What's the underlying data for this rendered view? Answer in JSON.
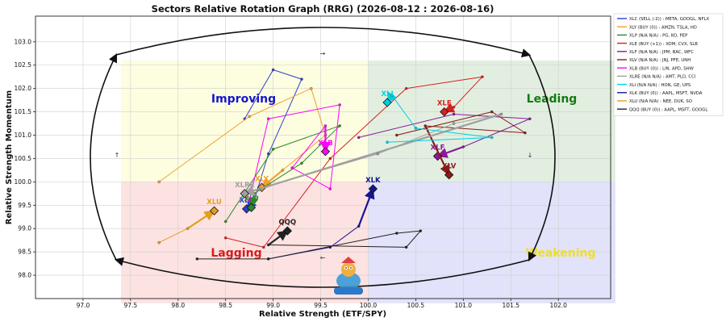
{
  "chart_data": {
    "type": "scatter",
    "title": "Sectors Relative Rotation Graph (RRG) (2026-08-12 : 2026-08-16)",
    "xlabel": "Relative Strength (ETF/SPY)",
    "ylabel": "Relative Strength Momentum",
    "xlim": [
      96.5,
      102.55
    ],
    "ylim": [
      97.5,
      103.55
    ],
    "grid": true,
    "legend_position": "top-right",
    "xticks": [
      "97.0",
      "97.5",
      "98.0",
      "98.5",
      "99.0",
      "99.5",
      "100.0",
      "100.5",
      "101.0",
      "101.5",
      "102.0"
    ],
    "yticks": [
      "98.0",
      "98.5",
      "99.0",
      "99.5",
      "100.0",
      "100.5",
      "101.0",
      "101.5",
      "102.0",
      "102.5",
      "103.0"
    ],
    "quadrants": [
      {
        "name": "Improving",
        "color": "#fdfde0",
        "label_color": "#1515cc",
        "x": [
          97.4,
          100.0
        ],
        "y": [
          100.0,
          102.6
        ]
      },
      {
        "name": "Leading",
        "color": "#e2efe0",
        "label_color": "#137a13",
        "x": [
          100.0,
          102.6
        ],
        "y": [
          100.0,
          102.6
        ]
      },
      {
        "name": "Lagging",
        "color": "#fde2e2",
        "label_color": "#e01818",
        "x": [
          97.4,
          100.0
        ],
        "y": [
          97.4,
          100.0
        ]
      },
      {
        "name": "Weakening",
        "color": "#e2e2fa",
        "label_color": "#f0e020",
        "x": [
          100.0,
          102.6
        ],
        "y": [
          97.4,
          100.0
        ]
      }
    ],
    "series": [
      {
        "name": "XLC",
        "legend": "XLC (SELL (-2)) : META, GOOGL, NFLX",
        "color": "#2f3fd0",
        "points": [
          [
            98.7,
            101.35
          ],
          [
            99.0,
            102.4
          ],
          [
            99.3,
            102.2
          ],
          [
            98.95,
            100.6
          ],
          [
            98.8,
            99.6
          ],
          [
            98.72,
            99.42
          ]
        ]
      },
      {
        "name": "XLY",
        "legend": "XLY (BUY (0)) : AMZN, TSLA, HD",
        "color": "#f0a030",
        "points": [
          [
            97.8,
            100.0
          ],
          [
            98.75,
            101.4
          ],
          [
            99.4,
            102.0
          ],
          [
            99.55,
            101.0
          ],
          [
            99.1,
            100.25
          ],
          [
            98.88,
            99.88
          ]
        ]
      },
      {
        "name": "XLP",
        "legend": "XLP (N/A N/A) : PG, KO, PEP",
        "color": "#2a8a2a",
        "points": [
          [
            98.5,
            99.15
          ],
          [
            99.0,
            100.7
          ],
          [
            99.7,
            101.2
          ],
          [
            99.3,
            100.4
          ],
          [
            98.8,
            99.75
          ],
          [
            98.77,
            99.45
          ]
        ]
      },
      {
        "name": "XLE",
        "legend": "XLE (BUY (+1)) : XOM, CVX, SLB",
        "color": "#d62020",
        "points": [
          [
            98.5,
            98.8
          ],
          [
            98.9,
            98.6
          ],
          [
            99.6,
            100.5
          ],
          [
            100.4,
            102.0
          ],
          [
            101.2,
            102.25
          ],
          [
            100.9,
            101.6
          ],
          [
            100.8,
            101.5
          ]
        ]
      },
      {
        "name": "XLF",
        "legend": "XLF (N/A N/A) : JPM, BAC, WFC",
        "color": "#8a1a9a",
        "points": [
          [
            99.9,
            100.95
          ],
          [
            100.9,
            101.45
          ],
          [
            101.7,
            101.35
          ],
          [
            101.0,
            100.75
          ],
          [
            100.73,
            100.55
          ]
        ]
      },
      {
        "name": "XLV",
        "legend": "XLV (N/A N/A) : JNJ, PFE, UNH",
        "color": "#8a1a1a",
        "points": [
          [
            100.3,
            101.0
          ],
          [
            101.3,
            101.5
          ],
          [
            101.65,
            101.05
          ],
          [
            100.6,
            101.2
          ],
          [
            100.85,
            100.15
          ]
        ]
      },
      {
        "name": "XLB",
        "legend": "XLB (BUY (0)) : LIN, APD, SHW",
        "color": "#ff00ff",
        "points": [
          [
            98.75,
            99.6
          ],
          [
            98.95,
            101.35
          ],
          [
            99.7,
            101.65
          ],
          [
            99.6,
            99.85
          ],
          [
            99.2,
            100.3
          ],
          [
            99.55,
            101.2
          ],
          [
            99.55,
            100.65
          ]
        ]
      },
      {
        "name": "XLRE",
        "legend": "XLRE (N/A N/A) : AMT, PLD, CCI",
        "color": "#a0a0a0",
        "points": [
          [
            98.85,
            99.85
          ],
          [
            100.1,
            100.6
          ],
          [
            100.9,
            101.25
          ],
          [
            101.4,
            101.45
          ],
          [
            98.7,
            99.75
          ]
        ]
      },
      {
        "name": "XLI",
        "legend": "XLI (N/A N/A) : HON, GE, UPS",
        "color": "#00d0e0",
        "points": [
          [
            100.2,
            100.85
          ],
          [
            101.3,
            100.95
          ],
          [
            100.5,
            101.15
          ],
          [
            100.25,
            101.85
          ],
          [
            100.2,
            101.7
          ]
        ]
      },
      {
        "name": "XLK",
        "legend": "XLK (BUY (0)) : AAPL, MSFT, NVDA",
        "color": "#151590",
        "points": [
          [
            98.95,
            98.35
          ],
          [
            99.6,
            98.6
          ],
          [
            99.9,
            99.05
          ],
          [
            100.05,
            99.85
          ]
        ]
      },
      {
        "name": "XLU",
        "legend": "XLU (N/A N/A) : NEE, DUK, SO",
        "color": "#e0a020",
        "points": [
          [
            97.8,
            98.7
          ],
          [
            98.1,
            99.0
          ],
          [
            98.38,
            99.38
          ]
        ]
      },
      {
        "name": "QQQ",
        "legend": "QQQ (BUY (0)) : AAPL, MSFT, GOOGL",
        "color": "#222222",
        "points": [
          [
            98.2,
            98.35
          ],
          [
            98.95,
            98.35
          ],
          [
            100.3,
            98.9
          ],
          [
            100.55,
            98.95
          ],
          [
            100.4,
            98.6
          ],
          [
            98.95,
            98.65
          ],
          [
            99.15,
            98.95
          ]
        ]
      }
    ]
  }
}
